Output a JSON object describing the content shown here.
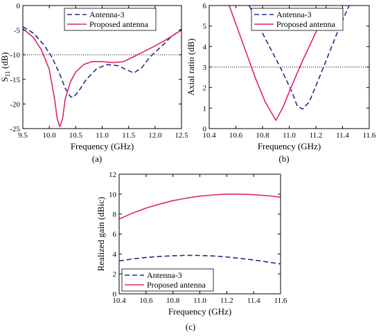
{
  "colors": {
    "antenna3": "#1f2a8c",
    "proposed": "#e0245e",
    "axis": "#000000",
    "reference": "#000000"
  },
  "chart_data": [
    {
      "panel": "(a)",
      "type": "line",
      "xlabel": "Frequency (GHz)",
      "ylabel": "S11 (dB)",
      "ylabel_main": "S",
      "ylabel_sub": "11",
      "ylabel_unit": " (dB)",
      "xlim": [
        9.5,
        12.5
      ],
      "ylim": [
        -25,
        0
      ],
      "xticks": [
        9.5,
        10.0,
        10.5,
        11.0,
        11.5,
        12.0,
        12.5
      ],
      "xtick_labels": [
        "9.5",
        "10.0",
        "10.5",
        "11.0",
        "11.5",
        "12.0",
        "12.5"
      ],
      "yticks": [
        -25,
        -20,
        -15,
        -10,
        -5,
        0
      ],
      "ytick_labels": [
        "-25",
        "-20",
        "-15",
        "-10",
        "-5",
        "0"
      ],
      "reference_y": -10,
      "legend": [
        "Antenna-3",
        "Proposed antenna"
      ],
      "legend_position": "top-right",
      "series": [
        {
          "name": "Antenna-3",
          "style": "dashed",
          "x": [
            9.5,
            9.7,
            9.9,
            10.05,
            10.2,
            10.3,
            10.4,
            10.45,
            10.55,
            10.7,
            10.9,
            11.1,
            11.3,
            11.45,
            11.6,
            11.75,
            11.9,
            12.1,
            12.3,
            12.5
          ],
          "y": [
            -4.3,
            -5.6,
            -8.0,
            -10.5,
            -14.0,
            -16.8,
            -18.5,
            -18.7,
            -17.5,
            -15.0,
            -12.8,
            -12.0,
            -12.2,
            -13.0,
            -13.7,
            -12.6,
            -10.5,
            -8.5,
            -6.4,
            -4.8
          ]
        },
        {
          "name": "Proposed antenna",
          "style": "solid",
          "x": [
            9.5,
            9.7,
            9.85,
            10.0,
            10.1,
            10.15,
            10.2,
            10.25,
            10.3,
            10.4,
            10.5,
            10.65,
            10.8,
            11.0,
            11.2,
            11.4,
            11.6,
            11.8,
            12.0,
            12.2,
            12.5
          ],
          "y": [
            -4.7,
            -6.5,
            -9.0,
            -13.0,
            -19.0,
            -23.0,
            -24.6,
            -23.0,
            -19.0,
            -15.5,
            -13.5,
            -12.0,
            -11.4,
            -11.4,
            -11.6,
            -11.4,
            -10.4,
            -9.3,
            -8.2,
            -7.0,
            -5.0
          ]
        }
      ]
    },
    {
      "panel": "(b)",
      "type": "line",
      "xlabel": "Frequency (GHz)",
      "ylabel": "Axial ratio (dB)",
      "xlim": [
        10.4,
        11.6
      ],
      "ylim": [
        0,
        6
      ],
      "xticks": [
        10.4,
        10.6,
        10.8,
        11.0,
        11.2,
        11.4,
        11.6
      ],
      "xtick_labels": [
        "10.4",
        "10.6",
        "10.8",
        "11.0",
        "11.2",
        "11.4",
        "11.6"
      ],
      "yticks": [
        0,
        1,
        2,
        3,
        4,
        5,
        6
      ],
      "ytick_labels": [
        "0",
        "1",
        "2",
        "3",
        "4",
        "5",
        "6"
      ],
      "reference_y": 3,
      "legend": [
        "Antenna-3",
        "Proposed antenna"
      ],
      "legend_position": "top-right",
      "series": [
        {
          "name": "Antenna-3",
          "style": "dashed",
          "x": [
            10.7,
            10.78,
            10.86,
            10.94,
            11.02,
            11.06,
            11.1,
            11.15,
            11.22,
            11.3,
            11.38,
            11.45
          ],
          "y": [
            6.0,
            4.9,
            3.9,
            2.9,
            1.8,
            1.1,
            0.95,
            1.3,
            2.4,
            3.7,
            5.0,
            6.0
          ]
        },
        {
          "name": "Proposed antenna",
          "style": "solid",
          "x": [
            10.55,
            10.65,
            10.75,
            10.82,
            10.9,
            10.95,
            11.02,
            11.1,
            11.2,
            11.28
          ],
          "y": [
            6.0,
            4.2,
            2.4,
            1.3,
            0.4,
            1.0,
            2.1,
            3.3,
            4.7,
            6.0
          ]
        }
      ]
    },
    {
      "panel": "(c)",
      "type": "line",
      "xlabel": "Frequency (GHz)",
      "ylabel": "Realized gain (dBic)",
      "xlim": [
        10.4,
        11.6
      ],
      "ylim": [
        0,
        12
      ],
      "xticks": [
        10.4,
        10.6,
        10.8,
        11.0,
        11.2,
        11.4,
        11.6
      ],
      "xtick_labels": [
        "10.4",
        "10.6",
        "10.8",
        "11.0",
        "11.2",
        "11.4",
        "11.6"
      ],
      "yticks": [
        0,
        2,
        4,
        6,
        8,
        10,
        12
      ],
      "ytick_labels": [
        "0",
        "2",
        "4",
        "6",
        "8",
        "10",
        "12"
      ],
      "legend": [
        "Antenna-3",
        "Proposed antenna"
      ],
      "legend_position": "bottom-left",
      "series": [
        {
          "name": "Antenna-3",
          "style": "dashed",
          "x": [
            10.4,
            10.5,
            10.6,
            10.7,
            10.8,
            10.9,
            11.0,
            11.1,
            11.2,
            11.3,
            11.4,
            11.5,
            11.6
          ],
          "y": [
            3.3,
            3.5,
            3.65,
            3.75,
            3.82,
            3.86,
            3.85,
            3.8,
            3.7,
            3.55,
            3.4,
            3.2,
            3.0
          ]
        },
        {
          "name": "Proposed antenna",
          "style": "solid",
          "x": [
            10.4,
            10.5,
            10.6,
            10.7,
            10.8,
            10.9,
            11.0,
            11.1,
            11.2,
            11.3,
            11.4,
            11.5,
            11.6
          ],
          "y": [
            7.5,
            8.1,
            8.6,
            9.0,
            9.35,
            9.6,
            9.8,
            9.92,
            10.0,
            10.0,
            9.95,
            9.85,
            9.7
          ]
        }
      ]
    }
  ]
}
